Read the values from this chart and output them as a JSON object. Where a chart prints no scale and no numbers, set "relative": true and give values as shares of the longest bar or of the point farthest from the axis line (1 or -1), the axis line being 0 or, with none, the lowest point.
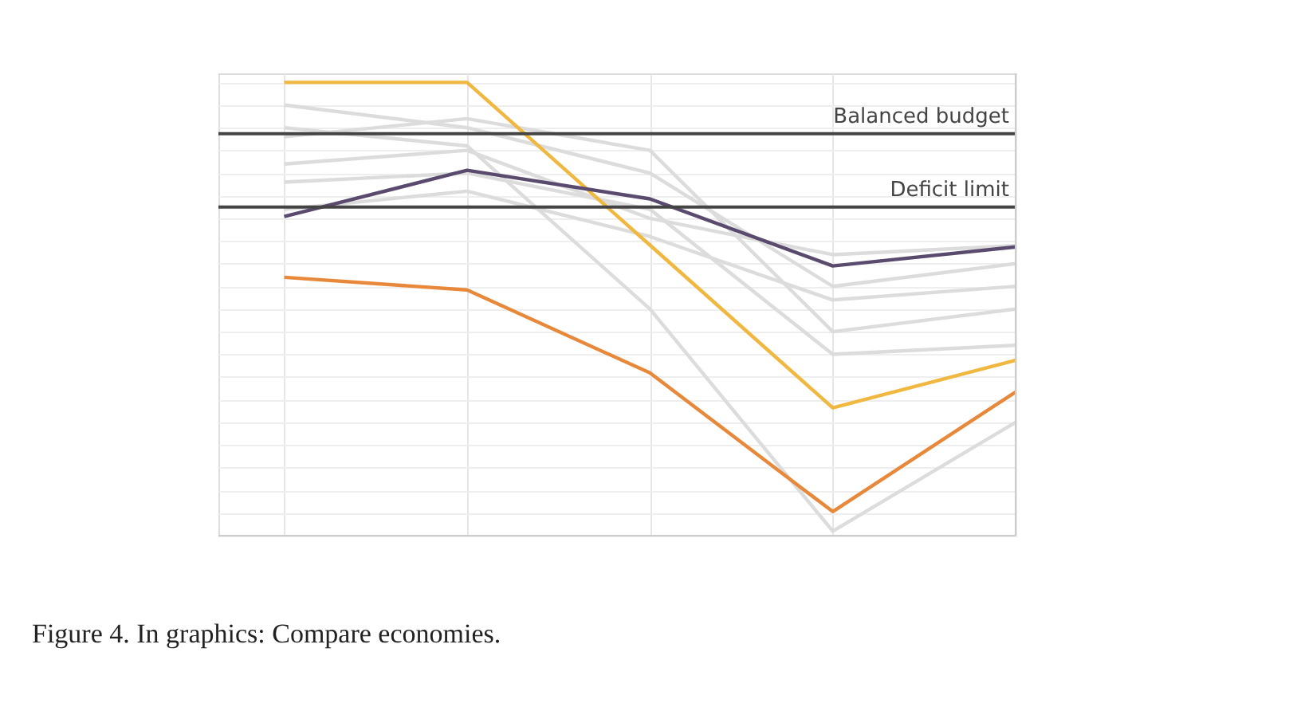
{
  "chart_data": {
    "type": "line",
    "relative": true,
    "categories": [
      null,
      null,
      null,
      null,
      null
    ],
    "grid": true,
    "marker": "none",
    "line_style": "solid",
    "series": [
      {
        "color": "#dcdcdc",
        "values": [
          0.95,
          0.9,
          0.8,
          0.55,
          0.6
        ]
      },
      {
        "color": "#dcdcdc",
        "values": [
          0.88,
          0.92,
          0.85,
          0.45,
          0.5
        ]
      },
      {
        "color": "#dcdcdc",
        "values": [
          0.82,
          0.85,
          0.7,
          0.62,
          0.64
        ]
      },
      {
        "color": "#dcdcdc",
        "values": [
          0.78,
          0.8,
          0.72,
          0.4,
          0.42
        ]
      },
      {
        "color": "#dcdcdc",
        "values": [
          0.9,
          0.86,
          0.5,
          0.01,
          0.25
        ]
      },
      {
        "color": "#dcdcdc",
        "values": [
          0.72,
          0.76,
          0.66,
          0.52,
          0.55
        ]
      },
      {
        "color": "#f0b840",
        "values": [
          1,
          1,
          0.641,
          0.282,
          0.387
        ]
      },
      {
        "color": "#5a4a6e",
        "values": [
          0.704,
          0.806,
          0.743,
          0.595,
          0.637
        ]
      },
      {
        "color": "#e8883a",
        "values": [
          0.57,
          0.542,
          0.359,
          0.053,
          0.317
        ]
      }
    ],
    "ref_lines": [
      {
        "axis": "y",
        "value": 0.887,
        "label": "Balanced budget",
        "color": "#444444"
      },
      {
        "axis": "y",
        "value": 0.725,
        "label": "Deficit limit",
        "color": "#444444"
      }
    ],
    "annotations": [
      "Figure 4. In graphics: Compare economies."
    ]
  }
}
